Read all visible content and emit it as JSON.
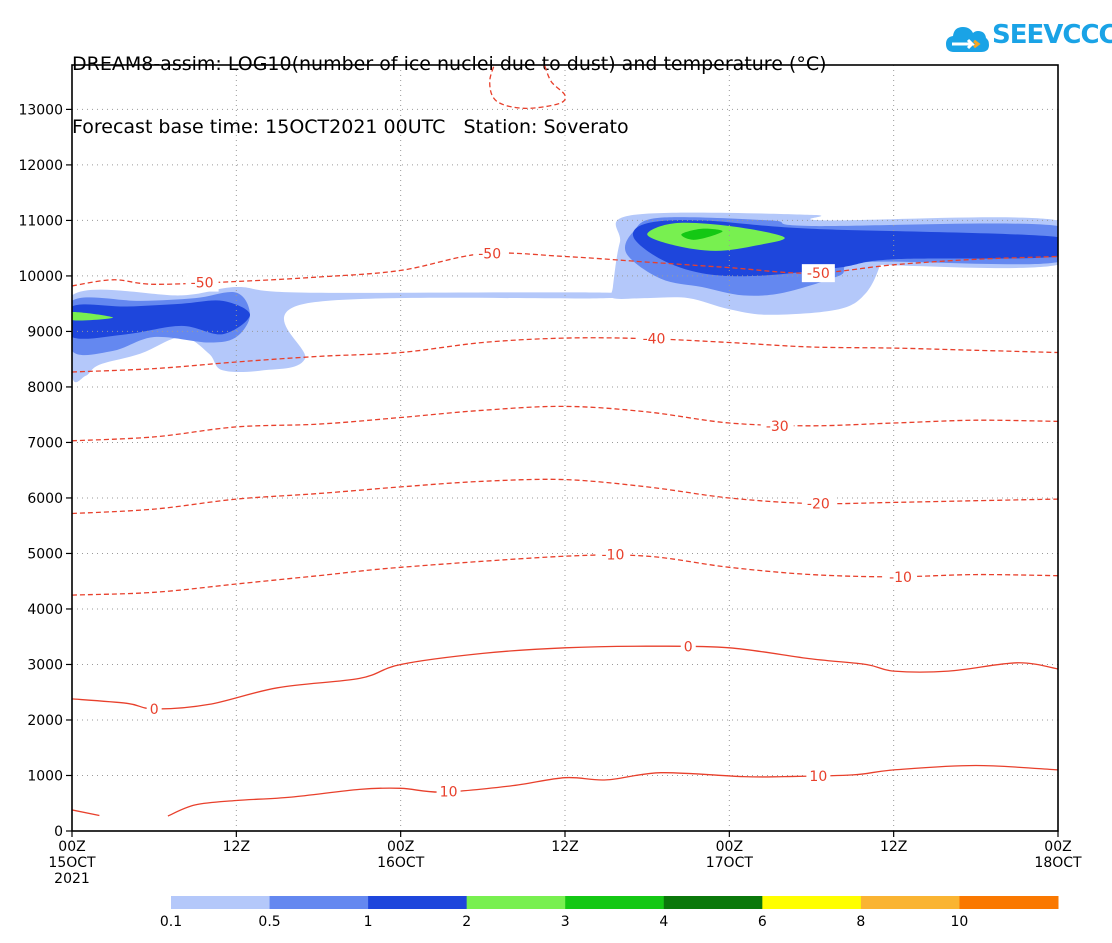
{
  "header": {
    "title_line1": "DREAM8-assim: LOG10(number of ice nuclei due to dust) and temperature (°C)",
    "title_line2": "Forecast base time: 15OCT2021 00UTC   Station: Soverato"
  },
  "logo": {
    "text": "SEEVCCC",
    "icon": "cloud-icon"
  },
  "chart_data": {
    "type": "heatmap",
    "title": "DREAM8-assim: LOG10(number of ice nuclei due to dust) and temperature (°C)",
    "subtitle": "Forecast base time: 15OCT2021 00UTC   Station: Soverato",
    "x_range_hours": [
      0,
      72
    ],
    "ylim": [
      0,
      13800
    ],
    "y_ticks": [
      0,
      1000,
      2000,
      3000,
      4000,
      5000,
      6000,
      7000,
      8000,
      9000,
      10000,
      11000,
      12000,
      13000
    ],
    "x_ticks": [
      {
        "hour": 0,
        "l1": "00Z",
        "l2": "15OCT",
        "l3": "2021"
      },
      {
        "hour": 12,
        "l1": "12Z",
        "l2": "",
        "l3": ""
      },
      {
        "hour": 24,
        "l1": "00Z",
        "l2": "16OCT",
        "l3": ""
      },
      {
        "hour": 36,
        "l1": "12Z",
        "l2": "",
        "l3": ""
      },
      {
        "hour": 48,
        "l1": "00Z",
        "l2": "17OCT",
        "l3": ""
      },
      {
        "hour": 60,
        "l1": "12Z",
        "l2": "",
        "l3": ""
      },
      {
        "hour": 72,
        "l1": "00Z",
        "l2": "18OCT",
        "l3": ""
      }
    ],
    "grid": true,
    "colorbar": {
      "levels": [
        "0.1",
        "0.5",
        "1",
        "2",
        "3",
        "4",
        "6",
        "8",
        "10"
      ],
      "colors": [
        "#b4c8fa",
        "#6488f0",
        "#1e46dc",
        "#78f050",
        "#14c814",
        "#0a780a",
        "#ffff00",
        "#fab432",
        "#fa7800"
      ]
    },
    "dust_polygons": [
      {
        "level": "0.1",
        "color": "#b4c8fa",
        "points": [
          [
            0,
            8200
          ],
          [
            1,
            8200
          ],
          [
            2,
            8400
          ],
          [
            5,
            8600
          ],
          [
            8,
            8900
          ],
          [
            10,
            8600
          ],
          [
            11,
            8300
          ],
          [
            14,
            8300
          ],
          [
            17,
            8500
          ],
          [
            17,
            9500
          ],
          [
            39,
            9600
          ],
          [
            39,
            9700
          ],
          [
            17,
            9700
          ],
          [
            12,
            9800
          ],
          [
            8,
            9650
          ],
          [
            0,
            9650
          ]
        ]
      },
      {
        "level": "0.5",
        "color": "#6488f0",
        "points": [
          [
            0,
            8650
          ],
          [
            3,
            8650
          ],
          [
            6,
            8900
          ],
          [
            10,
            8800
          ],
          [
            12,
            8900
          ],
          [
            13,
            9300
          ],
          [
            12,
            9700
          ],
          [
            9,
            9600
          ],
          [
            5,
            9550
          ],
          [
            0,
            9550
          ]
        ]
      },
      {
        "level": "1",
        "color": "#1e46dc",
        "points": [
          [
            0,
            8900
          ],
          [
            4,
            8950
          ],
          [
            8,
            9100
          ],
          [
            11,
            8950
          ],
          [
            13,
            9300
          ],
          [
            11,
            9550
          ],
          [
            8,
            9500
          ],
          [
            4,
            9450
          ],
          [
            0,
            9450
          ]
        ]
      },
      {
        "level": "2",
        "color": "#78f050",
        "points": [
          [
            0,
            9200
          ],
          [
            3,
            9250
          ],
          [
            0,
            9350
          ]
        ]
      },
      {
        "level": "0.1",
        "color": "#b4c8fa",
        "points": [
          [
            39.5,
            9600
          ],
          [
            39.5,
            9800
          ],
          [
            40,
            10600
          ],
          [
            41,
            11100
          ],
          [
            54,
            11100
          ],
          [
            55,
            11000
          ],
          [
            72,
            11000
          ],
          [
            72,
            10200
          ],
          [
            58.5,
            10200
          ],
          [
            59,
            10200
          ],
          [
            58,
            9700
          ],
          [
            56,
            9400
          ],
          [
            51,
            9300
          ],
          [
            48,
            9400
          ],
          [
            45,
            9600
          ],
          [
            42,
            9600
          ]
        ]
      },
      {
        "level": "0.5",
        "color": "#6488f0",
        "points": [
          [
            40.5,
            10400
          ],
          [
            41,
            10800
          ],
          [
            43,
            11050
          ],
          [
            51,
            11000
          ],
          [
            54,
            10900
          ],
          [
            72,
            10900
          ],
          [
            72,
            10250
          ],
          [
            58,
            10250
          ],
          [
            56,
            10000
          ],
          [
            52,
            9700
          ],
          [
            49,
            9650
          ],
          [
            46,
            9800
          ],
          [
            43,
            9950
          ]
        ]
      },
      {
        "level": "1",
        "color": "#1e46dc",
        "points": [
          [
            41,
            10700
          ],
          [
            42,
            10950
          ],
          [
            46,
            11000
          ],
          [
            54,
            10850
          ],
          [
            72,
            10700
          ],
          [
            72,
            10350
          ],
          [
            60,
            10300
          ],
          [
            56,
            10150
          ],
          [
            50,
            10000
          ],
          [
            46,
            10050
          ],
          [
            43,
            10300
          ]
        ]
      },
      {
        "level": "2",
        "color": "#78f050",
        "points": [
          [
            42,
            10750
          ],
          [
            44,
            10950
          ],
          [
            48,
            10900
          ],
          [
            52,
            10700
          ],
          [
            50,
            10550
          ],
          [
            47,
            10450
          ],
          [
            44,
            10550
          ]
        ]
      },
      {
        "level": "3",
        "color": "#14c814",
        "points": [
          [
            44.5,
            10750
          ],
          [
            46,
            10850
          ],
          [
            47.5,
            10800
          ],
          [
            45.5,
            10650
          ]
        ]
      }
    ],
    "temperature_lines": [
      {
        "label": "10",
        "dashed": false,
        "points": [
          [
            0,
            380
          ],
          [
            2,
            280
          ]
        ],
        "labels": []
      },
      {
        "label": "10",
        "dashed": false,
        "points": [
          [
            7,
            270
          ],
          [
            9,
            470
          ],
          [
            12,
            550
          ],
          [
            16,
            610
          ],
          [
            21,
            750
          ],
          [
            24,
            770
          ],
          [
            27,
            700
          ],
          [
            32,
            810
          ],
          [
            36,
            960
          ],
          [
            39,
            920
          ],
          [
            43,
            1050
          ],
          [
            49,
            980
          ],
          [
            52,
            980
          ],
          [
            57,
            1010
          ],
          [
            60,
            1100
          ],
          [
            66,
            1180
          ],
          [
            72,
            1100
          ]
        ],
        "labels": [
          [
            27.5,
            710
          ],
          [
            54.5,
            990
          ]
        ]
      },
      {
        "label": "0",
        "dashed": false,
        "points": [
          [
            0,
            2380
          ],
          [
            4,
            2300
          ],
          [
            6,
            2200
          ],
          [
            10,
            2280
          ],
          [
            15,
            2580
          ],
          [
            21,
            2750
          ],
          [
            24,
            3000
          ],
          [
            30,
            3200
          ],
          [
            36,
            3300
          ],
          [
            42,
            3330
          ],
          [
            48,
            3300
          ],
          [
            54,
            3100
          ],
          [
            58,
            3000
          ],
          [
            60,
            2880
          ],
          [
            64,
            2880
          ],
          [
            69,
            3030
          ],
          [
            72,
            2920
          ]
        ],
        "labels": [
          [
            6,
            2200
          ],
          [
            45,
            3320
          ]
        ]
      },
      {
        "label": "-10",
        "dashed": true,
        "points": [
          [
            0,
            4250
          ],
          [
            6,
            4300
          ],
          [
            12,
            4450
          ],
          [
            18,
            4600
          ],
          [
            24,
            4750
          ],
          [
            36,
            4950
          ],
          [
            42,
            4950
          ],
          [
            48,
            4750
          ],
          [
            54,
            4620
          ],
          [
            60,
            4580
          ],
          [
            66,
            4620
          ],
          [
            72,
            4600
          ]
        ],
        "labels": [
          [
            39.5,
            4980
          ],
          [
            60.5,
            4580
          ]
        ]
      },
      {
        "label": "-20",
        "dashed": true,
        "points": [
          [
            0,
            5720
          ],
          [
            6,
            5800
          ],
          [
            12,
            5980
          ],
          [
            18,
            6080
          ],
          [
            24,
            6200
          ],
          [
            30,
            6300
          ],
          [
            36,
            6330
          ],
          [
            42,
            6200
          ],
          [
            48,
            6000
          ],
          [
            54,
            5900
          ],
          [
            60,
            5920
          ],
          [
            66,
            5950
          ],
          [
            72,
            5980
          ]
        ],
        "labels": [
          [
            54.5,
            5900
          ]
        ]
      },
      {
        "label": "-30",
        "dashed": true,
        "points": [
          [
            0,
            7030
          ],
          [
            6,
            7100
          ],
          [
            12,
            7280
          ],
          [
            18,
            7330
          ],
          [
            24,
            7450
          ],
          [
            30,
            7580
          ],
          [
            36,
            7650
          ],
          [
            42,
            7550
          ],
          [
            48,
            7350
          ],
          [
            54,
            7300
          ],
          [
            60,
            7350
          ],
          [
            66,
            7400
          ],
          [
            72,
            7380
          ]
        ],
        "labels": [
          [
            51.5,
            7300
          ]
        ]
      },
      {
        "label": "-40",
        "dashed": true,
        "points": [
          [
            0,
            8270
          ],
          [
            6,
            8330
          ],
          [
            12,
            8450
          ],
          [
            18,
            8550
          ],
          [
            24,
            8620
          ],
          [
            30,
            8800
          ],
          [
            36,
            8880
          ],
          [
            42,
            8870
          ],
          [
            48,
            8800
          ],
          [
            54,
            8720
          ],
          [
            60,
            8700
          ],
          [
            66,
            8660
          ],
          [
            72,
            8620
          ]
        ],
        "labels": [
          [
            42.5,
            8870
          ]
        ]
      },
      {
        "label": "-50",
        "dashed": true,
        "points": [
          [
            0,
            9820
          ],
          [
            3,
            9930
          ],
          [
            6,
            9850
          ],
          [
            12,
            9900
          ],
          [
            18,
            9980
          ],
          [
            24,
            10100
          ],
          [
            30,
            10400
          ],
          [
            36,
            10350
          ],
          [
            42,
            10250
          ],
          [
            48,
            10150
          ],
          [
            54,
            10050
          ],
          [
            60,
            10200
          ],
          [
            66,
            10300
          ],
          [
            72,
            10350
          ]
        ],
        "labels": [
          [
            9.5,
            9880
          ],
          [
            30.5,
            10400
          ],
          [
            54.5,
            10050
          ]
        ]
      },
      {
        "label": "-50",
        "dashed": true,
        "points": [
          [
            31,
            13900
          ],
          [
            30.5,
            13500
          ],
          [
            31,
            13150
          ],
          [
            33,
            13020
          ],
          [
            35.5,
            13100
          ],
          [
            36,
            13250
          ],
          [
            35,
            13500
          ],
          [
            34.5,
            13800
          ]
        ],
        "labels": []
      }
    ]
  }
}
